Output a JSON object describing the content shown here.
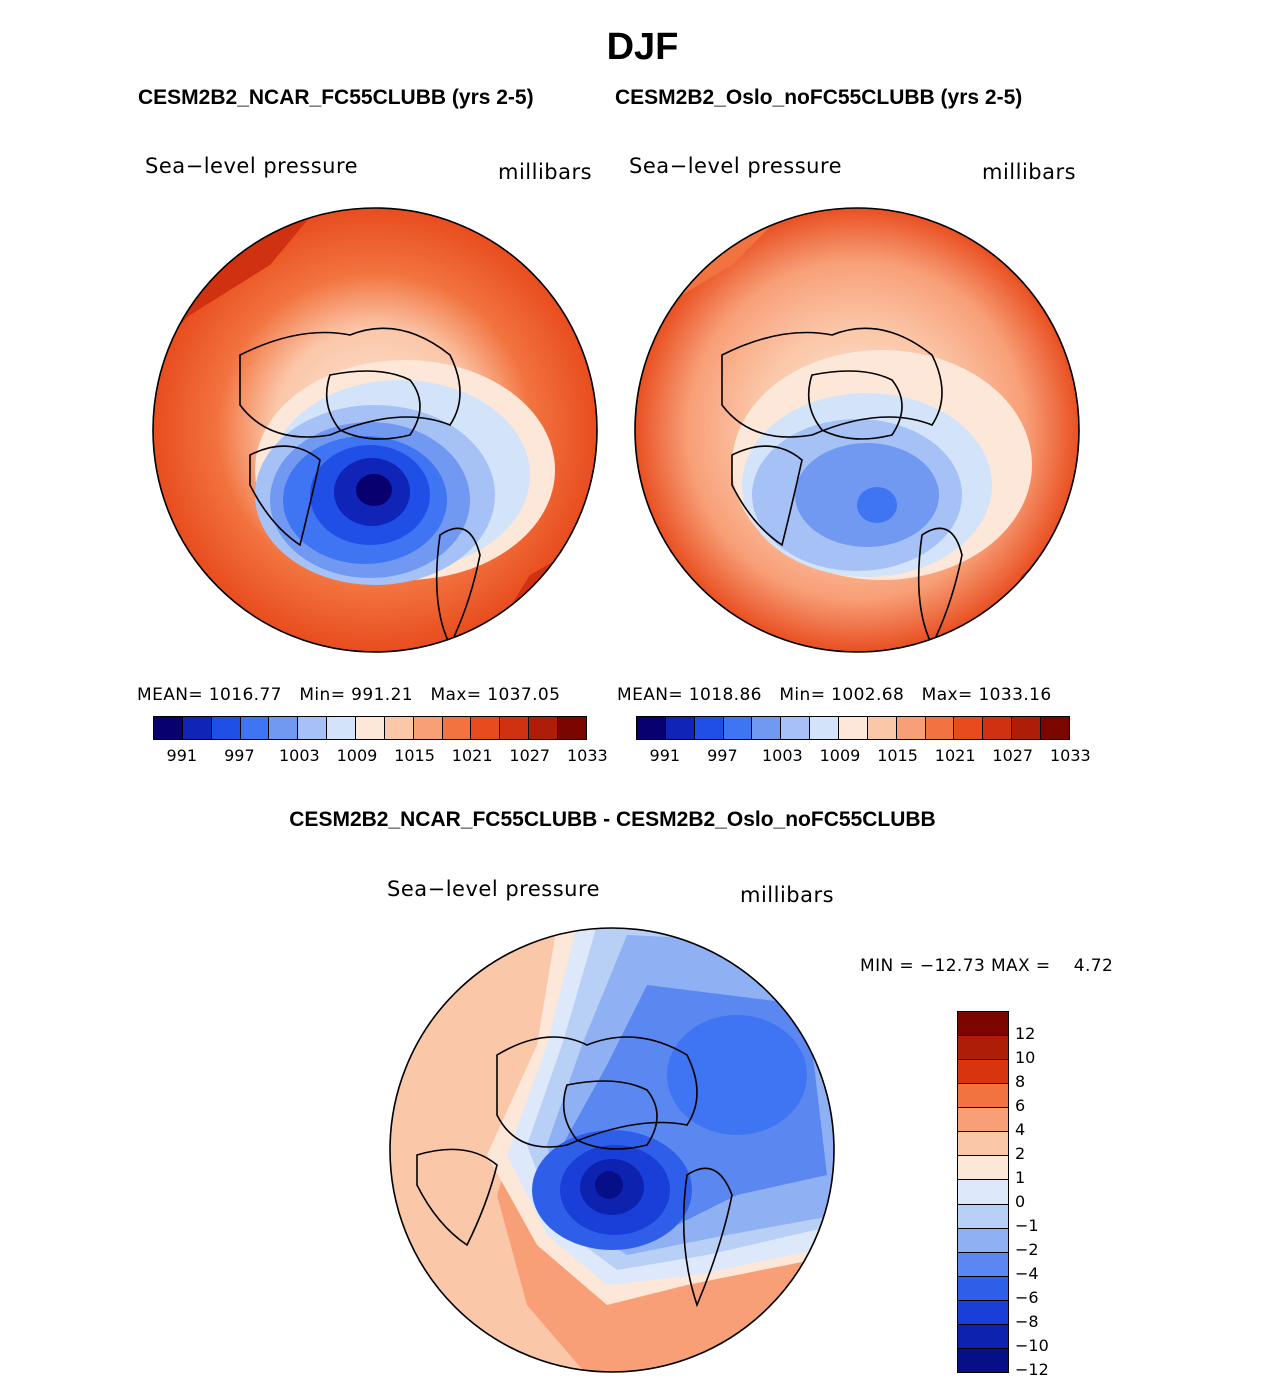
{
  "title": "DJF",
  "panel1": {
    "case_title": "CESM2B2_NCAR_FC55CLUBB (yrs 2-5)",
    "variable": "Sea−level pressure",
    "units": "millibars",
    "stats": {
      "mean": "MEAN= 1016.77",
      "min": "Min= 991.21",
      "max": "Max= 1037.05"
    },
    "colorbar_ticks": [
      "991",
      "997",
      "1003",
      "1009",
      "1015",
      "1021",
      "1027",
      "1033"
    ]
  },
  "panel2": {
    "case_title": "CESM2B2_Oslo_noFC55CLUBB (yrs 2-5)",
    "variable": "Sea−level pressure",
    "units": "millibars",
    "stats": {
      "mean": "MEAN= 1018.86",
      "min": "Min= 1002.68",
      "max": "Max= 1033.16"
    },
    "colorbar_ticks": [
      "991",
      "997",
      "1003",
      "1009",
      "1015",
      "1021",
      "1027",
      "1033"
    ]
  },
  "diff": {
    "title": "CESM2B2_NCAR_FC55CLUBB - CESM2B2_Oslo_noFC55CLUBB",
    "variable": "Sea−level pressure",
    "units": "millibars",
    "minmax": "MIN = −12.73 MAX =    4.72",
    "colorbar_ticks": [
      "12",
      "10",
      "8",
      "6",
      "4",
      "2",
      "1",
      "0",
      "−1",
      "−2",
      "−4",
      "−6",
      "−8",
      "−10",
      "−12"
    ]
  },
  "colors": {
    "abs_scale": [
      "#08006e",
      "#1024b8",
      "#1f4fe6",
      "#3f74f2",
      "#7199f2",
      "#a6c1f5",
      "#d3e4fa",
      "#fde7d8",
      "#fbc7a9",
      "#f89f77",
      "#f2733f",
      "#e84b1d",
      "#cf3111",
      "#ad1d07",
      "#7b0600"
    ],
    "diff_scale": [
      "#7b0600",
      "#ad1d07",
      "#d8350f",
      "#f2733f",
      "#f89f77",
      "#fbc7a9",
      "#fde7d8",
      "#dde9fb",
      "#b8cff6",
      "#8fb0f3",
      "#5b88f0",
      "#2f5fe9",
      "#1a3fd8",
      "#0d23b0",
      "#070f88"
    ]
  }
}
